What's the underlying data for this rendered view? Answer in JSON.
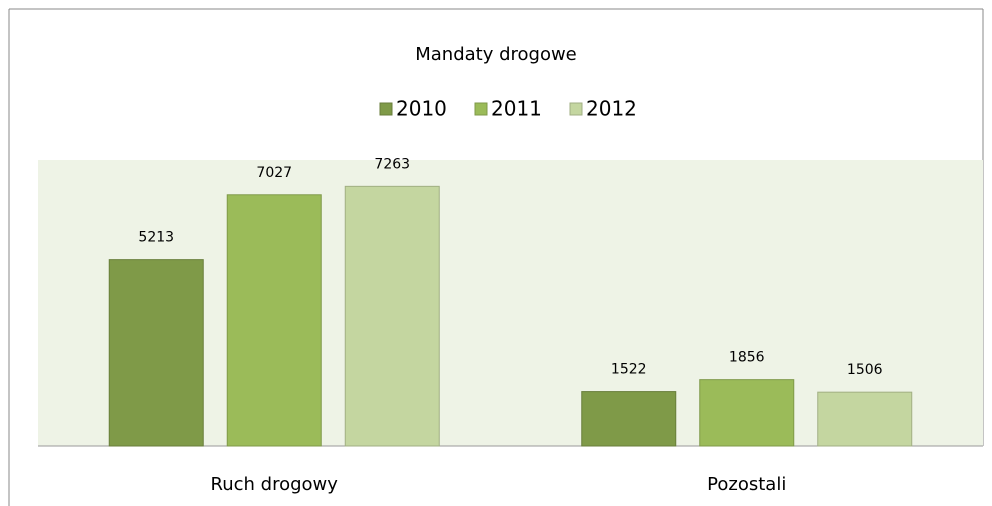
{
  "chart_data": {
    "type": "bar",
    "title": "Mandaty drogowe",
    "categories": [
      "Ruch drogowy",
      "Pozostali"
    ],
    "series": [
      {
        "name": "2010",
        "color": "#7f9a48",
        "values": [
          5213,
          1522
        ]
      },
      {
        "name": "2011",
        "color": "#9bbb59",
        "values": [
          7027,
          1856
        ]
      },
      {
        "name": "2012",
        "color": "#c4d6a0",
        "values": [
          7263,
          1506
        ]
      }
    ],
    "ylim": [
      0,
      8000
    ],
    "legend": "top"
  }
}
